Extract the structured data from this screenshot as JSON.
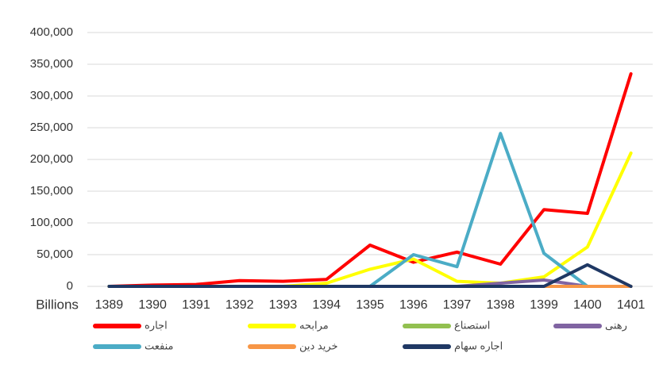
{
  "chart_data": {
    "type": "line",
    "x_label": "Billions",
    "categories": [
      "1389",
      "1390",
      "1391",
      "1392",
      "1393",
      "1394",
      "1395",
      "1396",
      "1397",
      "1398",
      "1399",
      "1400",
      "1401"
    ],
    "ylim": [
      0,
      400000
    ],
    "yticks": [
      {
        "value": 0,
        "label": "0"
      },
      {
        "value": 50000,
        "label": "50,000"
      },
      {
        "value": 100000,
        "label": "100,000"
      },
      {
        "value": 150000,
        "label": "150,000"
      },
      {
        "value": 200000,
        "label": "200,000"
      },
      {
        "value": 250000,
        "label": "250,000"
      },
      {
        "value": 300000,
        "label": "300,000"
      },
      {
        "value": 350000,
        "label": "350,000"
      },
      {
        "value": 400000,
        "label": "400,000"
      }
    ],
    "grid": true,
    "series": [
      {
        "name": "اجاره",
        "color": "#ff0000",
        "values": [
          0,
          2000,
          3000,
          9000,
          8000,
          11000,
          65000,
          38000,
          54000,
          35000,
          121000,
          115000,
          335000
        ]
      },
      {
        "name": "مرابحه",
        "color": "#ffff00",
        "values": [
          0,
          0,
          0,
          0,
          0,
          5000,
          27000,
          43000,
          8000,
          5000,
          15000,
          62000,
          210000
        ]
      },
      {
        "name": "استصناع",
        "color": "#92c050",
        "values": [
          0,
          0,
          0,
          0,
          0,
          0,
          0,
          0,
          0,
          0,
          0,
          0,
          0
        ]
      },
      {
        "name": "رهنی",
        "color": "#8064a2",
        "values": [
          null,
          null,
          null,
          null,
          null,
          0,
          0,
          0,
          0,
          5000,
          10000,
          0,
          0
        ]
      },
      {
        "name": "منفعت",
        "color": "#4bacc6",
        "values": [
          null,
          null,
          null,
          null,
          null,
          null,
          0,
          50000,
          31000,
          241000,
          52000,
          0,
          null
        ]
      },
      {
        "name": "خرید دین",
        "color": "#f79646",
        "values": [
          null,
          null,
          null,
          null,
          null,
          null,
          null,
          null,
          null,
          null,
          0,
          0,
          0
        ]
      },
      {
        "name": "اجاره سهام",
        "color": "#1f3864",
        "values": [
          0,
          0,
          0,
          0,
          0,
          0,
          0,
          0,
          0,
          0,
          0,
          34000,
          0
        ]
      }
    ]
  }
}
